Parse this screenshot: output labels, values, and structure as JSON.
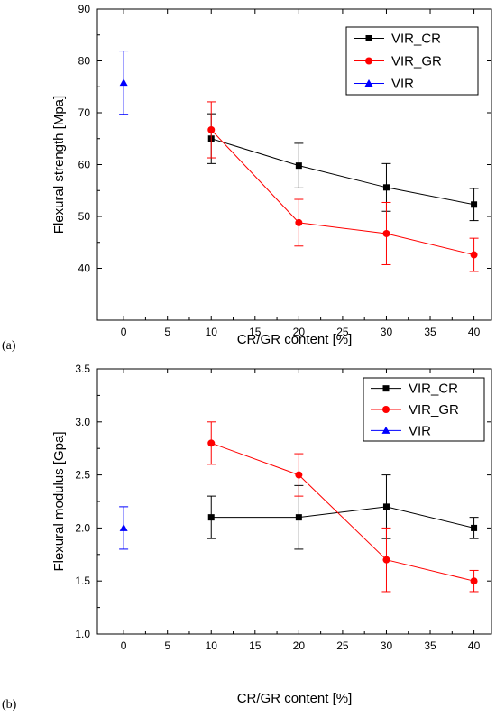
{
  "chart_data": [
    {
      "panel_label": "(a)",
      "type": "line",
      "xlabel": "CR/GR content [%]",
      "ylabel": "Flexural strength [Mpa]",
      "xlim": [
        -3,
        42
      ],
      "ylim": [
        30,
        90
      ],
      "xticks": [
        0,
        5,
        10,
        15,
        20,
        25,
        30,
        35,
        40
      ],
      "yticks": [
        40,
        50,
        60,
        70,
        80,
        90
      ],
      "legend_position": "top-right",
      "series": [
        {
          "name": "VIR_CR",
          "color": "#000000",
          "marker": "square",
          "x": [
            10,
            20,
            30,
            40
          ],
          "values": [
            65.0,
            59.8,
            55.6,
            52.3
          ],
          "errors": [
            4.8,
            4.3,
            4.6,
            3.1
          ]
        },
        {
          "name": "VIR_GR",
          "color": "#ff0000",
          "marker": "circle",
          "x": [
            10,
            20,
            30,
            40
          ],
          "values": [
            66.7,
            48.8,
            46.7,
            42.6
          ],
          "errors": [
            5.4,
            4.5,
            6.0,
            3.2
          ]
        },
        {
          "name": "VIR",
          "color": "#0000ff",
          "marker": "triangle",
          "x": [
            0
          ],
          "values": [
            75.8
          ],
          "errors": [
            6.1
          ]
        }
      ]
    },
    {
      "panel_label": "(b)",
      "type": "line",
      "xlabel": "CR/GR content [%]",
      "ylabel": "Flexural modulus [Gpa]",
      "xlim": [
        -3,
        42
      ],
      "ylim": [
        1.0,
        3.5
      ],
      "xticks": [
        0,
        5,
        10,
        15,
        20,
        25,
        30,
        35,
        40
      ],
      "yticks": [
        1.0,
        1.5,
        2.0,
        2.5,
        3.0,
        3.5
      ],
      "legend_position": "top-right",
      "series": [
        {
          "name": "VIR_CR",
          "color": "#000000",
          "marker": "square",
          "x": [
            10,
            20,
            30,
            40
          ],
          "values": [
            2.1,
            2.1,
            2.2,
            2.0
          ],
          "errors": [
            0.2,
            0.3,
            0.3,
            0.1
          ]
        },
        {
          "name": "VIR_GR",
          "color": "#ff0000",
          "marker": "circle",
          "x": [
            10,
            20,
            30,
            40
          ],
          "values": [
            2.8,
            2.5,
            1.7,
            1.5
          ],
          "errors": [
            0.2,
            0.2,
            0.3,
            0.1
          ]
        },
        {
          "name": "VIR",
          "color": "#0000ff",
          "marker": "triangle",
          "x": [
            0
          ],
          "values": [
            2.0
          ],
          "errors": [
            0.2
          ]
        }
      ]
    }
  ]
}
